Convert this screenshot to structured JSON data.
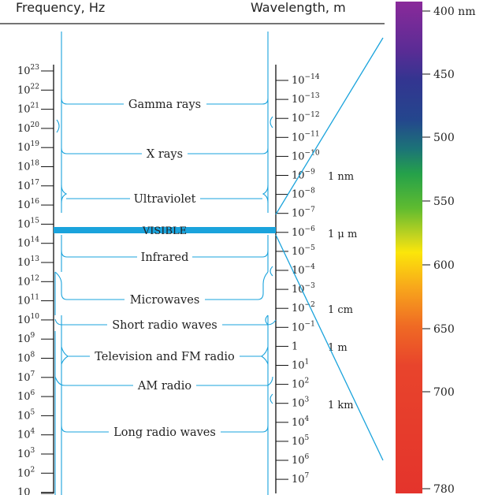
{
  "header": {
    "frequency_label": "Frequency, Hz",
    "wavelength_label": "Wavelength, m"
  },
  "frequency_ticks": [
    {
      "base": "10",
      "exp": "23"
    },
    {
      "base": "10",
      "exp": "22"
    },
    {
      "base": "10",
      "exp": "21"
    },
    {
      "base": "10",
      "exp": "20"
    },
    {
      "base": "10",
      "exp": "19"
    },
    {
      "base": "10",
      "exp": "18"
    },
    {
      "base": "10",
      "exp": "17"
    },
    {
      "base": "10",
      "exp": "16"
    },
    {
      "base": "10",
      "exp": "15"
    },
    {
      "base": "10",
      "exp": "14"
    },
    {
      "base": "10",
      "exp": "13"
    },
    {
      "base": "10",
      "exp": "12"
    },
    {
      "base": "10",
      "exp": "11"
    },
    {
      "base": "10",
      "exp": "10"
    },
    {
      "base": "10",
      "exp": "9"
    },
    {
      "base": "10",
      "exp": "8"
    },
    {
      "base": "10",
      "exp": "7"
    },
    {
      "base": "10",
      "exp": "6"
    },
    {
      "base": "10",
      "exp": "5"
    },
    {
      "base": "10",
      "exp": "4"
    },
    {
      "base": "10",
      "exp": "3"
    },
    {
      "base": "10",
      "exp": "2"
    },
    {
      "base": "10",
      "exp": ""
    }
  ],
  "wavelength_ticks": [
    {
      "base": "10",
      "exp": "−14"
    },
    {
      "base": "10",
      "exp": "−13"
    },
    {
      "base": "10",
      "exp": "−12"
    },
    {
      "base": "10",
      "exp": "−11"
    },
    {
      "base": "10",
      "exp": "−10"
    },
    {
      "base": "10",
      "exp": "−9"
    },
    {
      "base": "10",
      "exp": "−8"
    },
    {
      "base": "10",
      "exp": "−7"
    },
    {
      "base": "10",
      "exp": "−6"
    },
    {
      "base": "10",
      "exp": "−5"
    },
    {
      "base": "10",
      "exp": "−4"
    },
    {
      "base": "10",
      "exp": "−3"
    },
    {
      "base": "10",
      "exp": "−2"
    },
    {
      "base": "10",
      "exp": "−1"
    },
    {
      "base": "1",
      "exp": ""
    },
    {
      "base": "10",
      "exp": "1"
    },
    {
      "base": "10",
      "exp": "2"
    },
    {
      "base": "10",
      "exp": "3"
    },
    {
      "base": "10",
      "exp": "4"
    },
    {
      "base": "10",
      "exp": "5"
    },
    {
      "base": "10",
      "exp": "6"
    },
    {
      "base": "10",
      "exp": "7"
    }
  ],
  "length_units": [
    "1 nm",
    "1 μ m",
    "1 cm",
    "1 m",
    "1 km"
  ],
  "bands": {
    "gamma": "Gamma rays",
    "xray": "X rays",
    "uv": "Ultraviolet",
    "visible": "VISIBLE",
    "ir": "Infrared",
    "micro": "Microwaves",
    "short": "Short radio waves",
    "tv": "Television and FM radio",
    "am": "AM radio",
    "long": "Long radio waves"
  },
  "spectrum": {
    "labels": [
      "400 nm",
      "450",
      "500",
      "550",
      "600",
      "650",
      "700",
      "780"
    ],
    "colors": [
      "#8a2a9a",
      "#4a2f93",
      "#283a8e",
      "#1a6b7a",
      "#2aa046",
      "#62bb2f",
      "#d6d81d",
      "#fbe50a",
      "#f6a11c",
      "#ef6a24",
      "#e8412c",
      "#e4342c"
    ],
    "accent": "#1aa3dc"
  }
}
